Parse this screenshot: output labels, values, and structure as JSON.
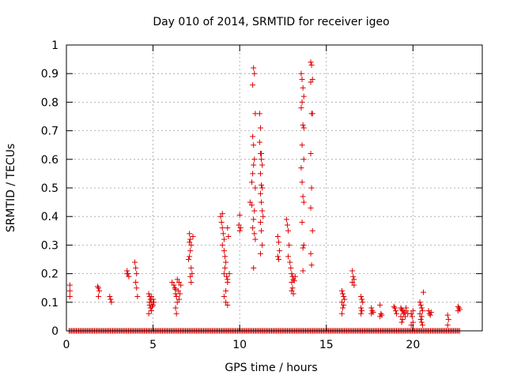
{
  "chart_data": {
    "type": "scatter",
    "title": "Day 010 of 2014, SRMTID for receiver igeo",
    "xlabel": "GPS time / hours",
    "ylabel": "SRMTID / TECUs",
    "xlim": [
      0,
      24
    ],
    "ylim": [
      0,
      1
    ],
    "xticks": [
      0,
      5,
      10,
      15,
      20
    ],
    "xtick_labels": [
      "0",
      "5",
      "10",
      "15",
      "20"
    ],
    "yticks": [
      0,
      0.1,
      0.2,
      0.3,
      0.4,
      0.5,
      0.6,
      0.7,
      0.8,
      0.9,
      1
    ],
    "ytick_labels": [
      "0",
      "0.1",
      "0.2",
      "0.3",
      "0.4",
      "0.5",
      "0.6",
      "0.7",
      "0.8",
      "0.9",
      "1"
    ],
    "grid": true,
    "marker": "+",
    "marker_color": "#dd0000",
    "zero_baseline_points": {
      "y": 0,
      "x_start": 0.15,
      "x_end": 22.7,
      "x_step": 0.07
    },
    "series": [
      {
        "name": "SRMTID",
        "color": "#dd0000",
        "points": [
          [
            0.2,
            0.16
          ],
          [
            0.2,
            0.14
          ],
          [
            0.2,
            0.12
          ],
          [
            1.8,
            0.155
          ],
          [
            1.85,
            0.15
          ],
          [
            1.9,
            0.14
          ],
          [
            1.85,
            0.12
          ],
          [
            2.5,
            0.12
          ],
          [
            2.55,
            0.11
          ],
          [
            2.6,
            0.1
          ],
          [
            3.5,
            0.21
          ],
          [
            3.55,
            0.2
          ],
          [
            3.6,
            0.19
          ],
          [
            3.5,
            0.2
          ],
          [
            3.95,
            0.24
          ],
          [
            4.0,
            0.22
          ],
          [
            4.05,
            0.2
          ],
          [
            4.0,
            0.17
          ],
          [
            4.05,
            0.15
          ],
          [
            4.1,
            0.12
          ],
          [
            4.75,
            0.13
          ],
          [
            4.8,
            0.12
          ],
          [
            4.85,
            0.11
          ],
          [
            4.9,
            0.1
          ],
          [
            4.8,
            0.09
          ],
          [
            4.85,
            0.08
          ],
          [
            4.9,
            0.07
          ],
          [
            4.95,
            0.085
          ],
          [
            5.0,
            0.09
          ],
          [
            5.0,
            0.11
          ],
          [
            4.75,
            0.06
          ],
          [
            4.9,
            0.12
          ],
          [
            5.05,
            0.1
          ],
          [
            4.8,
            0.1
          ],
          [
            6.1,
            0.17
          ],
          [
            6.2,
            0.16
          ],
          [
            6.25,
            0.15
          ],
          [
            6.3,
            0.13
          ],
          [
            6.35,
            0.12
          ],
          [
            6.4,
            0.1
          ],
          [
            6.3,
            0.08
          ],
          [
            6.35,
            0.06
          ],
          [
            6.45,
            0.14
          ],
          [
            6.5,
            0.11
          ],
          [
            6.55,
            0.13
          ],
          [
            6.6,
            0.16
          ],
          [
            6.5,
            0.17
          ],
          [
            6.4,
            0.18
          ],
          [
            6.3,
            0.145
          ],
          [
            7.1,
            0.34
          ],
          [
            7.15,
            0.32
          ],
          [
            7.2,
            0.3
          ],
          [
            7.15,
            0.28
          ],
          [
            7.1,
            0.26
          ],
          [
            7.05,
            0.25
          ],
          [
            7.2,
            0.22
          ],
          [
            7.25,
            0.2
          ],
          [
            7.15,
            0.19
          ],
          [
            7.2,
            0.17
          ],
          [
            7.1,
            0.31
          ],
          [
            7.3,
            0.33
          ],
          [
            8.9,
            0.4
          ],
          [
            8.95,
            0.38
          ],
          [
            9.0,
            0.36
          ],
          [
            9.05,
            0.34
          ],
          [
            9.1,
            0.32
          ],
          [
            9.0,
            0.3
          ],
          [
            9.1,
            0.28
          ],
          [
            9.15,
            0.26
          ],
          [
            9.2,
            0.24
          ],
          [
            9.15,
            0.22
          ],
          [
            9.1,
            0.2
          ],
          [
            9.25,
            0.19
          ],
          [
            9.3,
            0.18
          ],
          [
            9.3,
            0.17
          ],
          [
            9.2,
            0.14
          ],
          [
            9.1,
            0.12
          ],
          [
            9.2,
            0.1
          ],
          [
            9.3,
            0.09
          ],
          [
            9.3,
            0.36
          ],
          [
            9.35,
            0.33
          ],
          [
            9.0,
            0.41
          ],
          [
            9.4,
            0.2
          ],
          [
            10.0,
            0.405
          ],
          [
            9.95,
            0.37
          ],
          [
            10.0,
            0.35
          ],
          [
            10.05,
            0.36
          ],
          [
            10.6,
            0.45
          ],
          [
            10.7,
            0.44
          ],
          [
            10.75,
            0.86
          ],
          [
            10.8,
            0.92
          ],
          [
            10.85,
            0.9
          ],
          [
            10.9,
            0.76
          ],
          [
            10.75,
            0.68
          ],
          [
            10.8,
            0.65
          ],
          [
            10.85,
            0.6
          ],
          [
            10.8,
            0.58
          ],
          [
            10.75,
            0.55
          ],
          [
            10.7,
            0.52
          ],
          [
            10.9,
            0.5
          ],
          [
            10.85,
            0.42
          ],
          [
            10.8,
            0.39
          ],
          [
            10.75,
            0.36
          ],
          [
            10.85,
            0.34
          ],
          [
            10.9,
            0.32
          ],
          [
            10.8,
            0.22
          ],
          [
            11.15,
            0.76
          ],
          [
            11.2,
            0.71
          ],
          [
            11.15,
            0.66
          ],
          [
            11.2,
            0.62
          ],
          [
            11.25,
            0.6
          ],
          [
            11.3,
            0.58
          ],
          [
            11.2,
            0.55
          ],
          [
            11.25,
            0.51
          ],
          [
            11.3,
            0.5
          ],
          [
            11.2,
            0.48
          ],
          [
            11.25,
            0.45
          ],
          [
            11.3,
            0.42
          ],
          [
            11.35,
            0.4
          ],
          [
            11.2,
            0.38
          ],
          [
            11.25,
            0.35
          ],
          [
            11.3,
            0.3
          ],
          [
            11.2,
            0.27
          ],
          [
            11.25,
            0.62
          ],
          [
            12.2,
            0.33
          ],
          [
            12.25,
            0.31
          ],
          [
            12.3,
            0.28
          ],
          [
            12.2,
            0.26
          ],
          [
            12.25,
            0.25
          ],
          [
            12.7,
            0.39
          ],
          [
            12.75,
            0.37
          ],
          [
            12.8,
            0.35
          ],
          [
            12.85,
            0.3
          ],
          [
            12.8,
            0.26
          ],
          [
            12.9,
            0.24
          ],
          [
            12.95,
            0.22
          ],
          [
            13.0,
            0.2
          ],
          [
            13.05,
            0.19
          ],
          [
            13.1,
            0.18
          ],
          [
            13.0,
            0.17
          ],
          [
            13.05,
            0.15
          ],
          [
            13.1,
            0.13
          ],
          [
            13.2,
            0.19
          ],
          [
            13.15,
            0.175
          ],
          [
            13.0,
            0.14
          ],
          [
            13.55,
            0.9
          ],
          [
            13.6,
            0.88
          ],
          [
            13.65,
            0.85
          ],
          [
            13.7,
            0.82
          ],
          [
            13.6,
            0.8
          ],
          [
            13.55,
            0.78
          ],
          [
            13.65,
            0.72
          ],
          [
            13.7,
            0.71
          ],
          [
            13.6,
            0.65
          ],
          [
            13.7,
            0.6
          ],
          [
            13.55,
            0.57
          ],
          [
            13.6,
            0.52
          ],
          [
            13.65,
            0.47
          ],
          [
            13.7,
            0.45
          ],
          [
            13.6,
            0.38
          ],
          [
            13.7,
            0.3
          ],
          [
            13.65,
            0.29
          ],
          [
            13.65,
            0.21
          ],
          [
            14.1,
            0.94
          ],
          [
            14.15,
            0.93
          ],
          [
            14.2,
            0.88
          ],
          [
            14.1,
            0.87
          ],
          [
            14.15,
            0.76
          ],
          [
            14.2,
            0.76
          ],
          [
            14.1,
            0.62
          ],
          [
            14.15,
            0.5
          ],
          [
            14.1,
            0.43
          ],
          [
            14.2,
            0.35
          ],
          [
            14.1,
            0.27
          ],
          [
            14.15,
            0.23
          ],
          [
            15.9,
            0.14
          ],
          [
            15.95,
            0.13
          ],
          [
            16.0,
            0.12
          ],
          [
            16.05,
            0.11
          ],
          [
            15.9,
            0.1
          ],
          [
            16.0,
            0.09
          ],
          [
            15.95,
            0.08
          ],
          [
            15.9,
            0.06
          ],
          [
            16.5,
            0.21
          ],
          [
            16.55,
            0.19
          ],
          [
            16.6,
            0.18
          ],
          [
            16.5,
            0.17
          ],
          [
            16.6,
            0.16
          ],
          [
            17.0,
            0.12
          ],
          [
            17.05,
            0.11
          ],
          [
            17.1,
            0.1
          ],
          [
            17.0,
            0.08
          ],
          [
            17.05,
            0.07
          ],
          [
            17.0,
            0.06
          ],
          [
            17.6,
            0.08
          ],
          [
            17.65,
            0.07
          ],
          [
            17.7,
            0.065
          ],
          [
            17.6,
            0.06
          ],
          [
            18.1,
            0.09
          ],
          [
            18.15,
            0.06
          ],
          [
            18.2,
            0.055
          ],
          [
            18.1,
            0.05
          ],
          [
            18.9,
            0.085
          ],
          [
            18.95,
            0.08
          ],
          [
            19.0,
            0.07
          ],
          [
            19.05,
            0.06
          ],
          [
            19.3,
            0.08
          ],
          [
            19.35,
            0.075
          ],
          [
            19.4,
            0.07
          ],
          [
            19.45,
            0.06
          ],
          [
            19.3,
            0.05
          ],
          [
            19.4,
            0.04
          ],
          [
            19.5,
            0.065
          ],
          [
            19.55,
            0.05
          ],
          [
            19.6,
            0.07
          ],
          [
            19.7,
            0.06
          ],
          [
            19.6,
            0.08
          ],
          [
            19.35,
            0.03
          ],
          [
            19.9,
            0.06
          ],
          [
            19.95,
            0.05
          ],
          [
            20.0,
            0.03
          ],
          [
            19.9,
            0.02
          ],
          [
            20.0,
            0.07
          ],
          [
            20.4,
            0.1
          ],
          [
            20.45,
            0.09
          ],
          [
            20.5,
            0.08
          ],
          [
            20.55,
            0.07
          ],
          [
            20.4,
            0.06
          ],
          [
            20.5,
            0.05
          ],
          [
            20.45,
            0.04
          ],
          [
            20.5,
            0.03
          ],
          [
            20.6,
            0.135
          ],
          [
            20.55,
            0.02
          ],
          [
            20.9,
            0.07
          ],
          [
            20.95,
            0.06
          ],
          [
            21.0,
            0.055
          ],
          [
            21.05,
            0.065
          ],
          [
            22.0,
            0.055
          ],
          [
            22.05,
            0.04
          ],
          [
            22.0,
            0.02
          ],
          [
            22.6,
            0.085
          ],
          [
            22.65,
            0.08
          ],
          [
            22.7,
            0.075
          ],
          [
            22.6,
            0.07
          ]
        ]
      }
    ]
  }
}
